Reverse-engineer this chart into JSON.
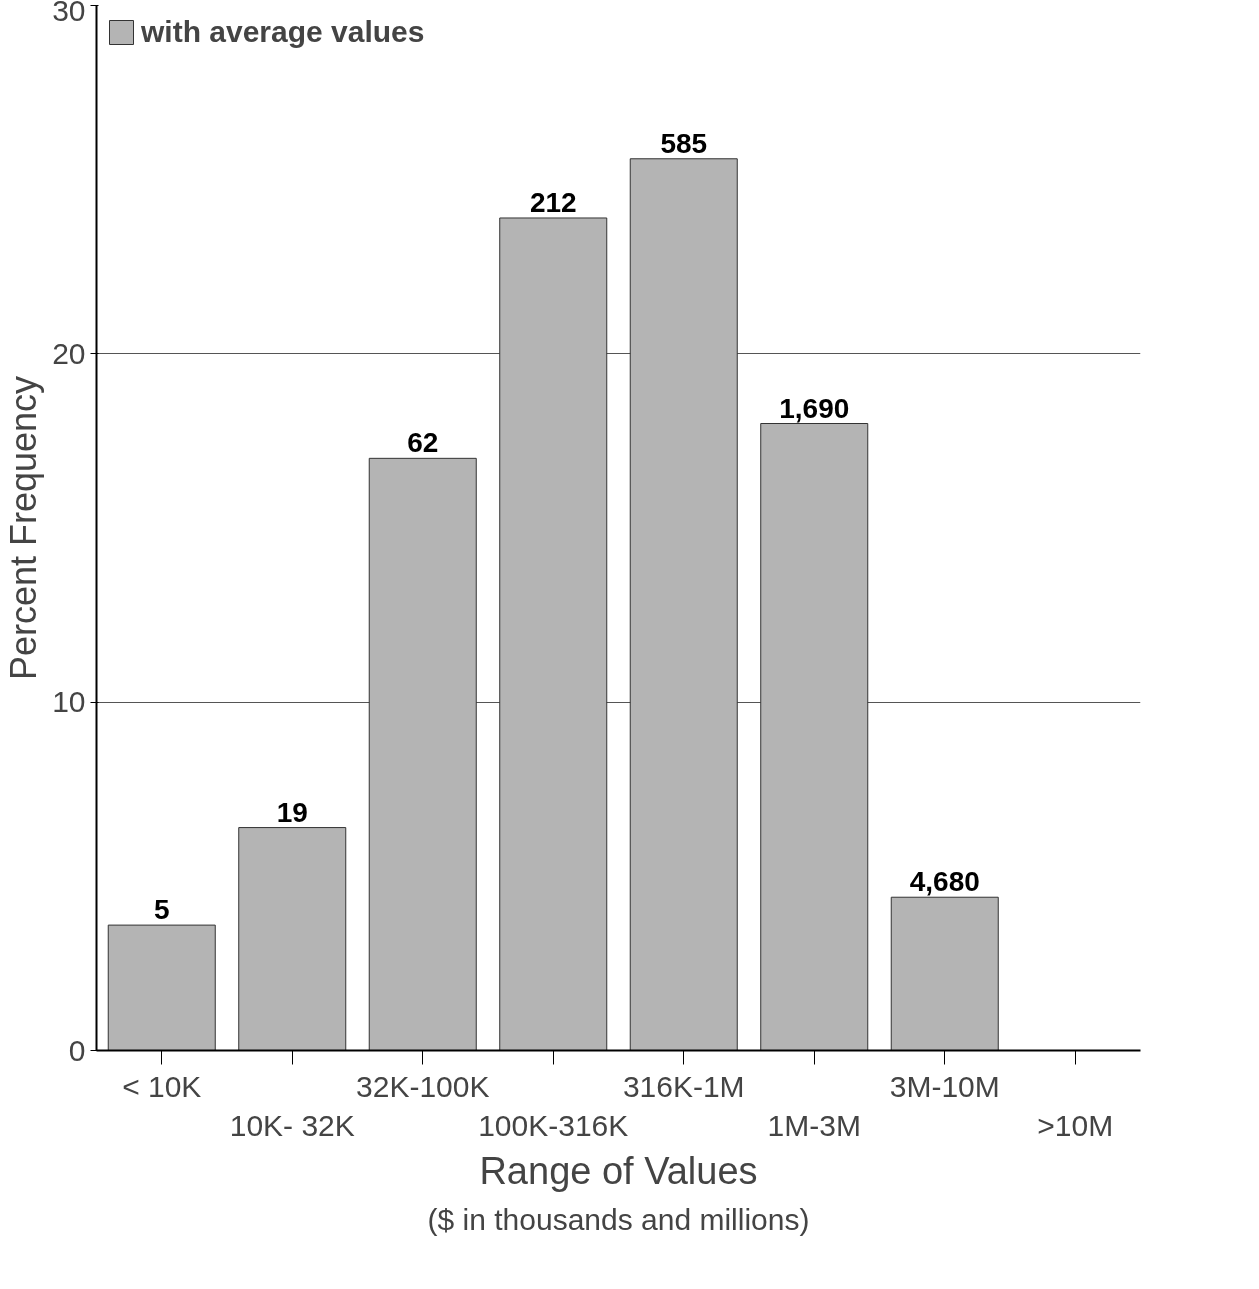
{
  "chart_data": {
    "type": "bar",
    "xlabel": "Range of Values",
    "subtitle": "($ in thousands and millions)",
    "ylabel": "Percent Frequency",
    "categories": [
      "< 10K",
      "10K- 32K",
      "32K-100K",
      "100K-316K",
      "316K-1M",
      "1M-3M",
      "3M-10M",
      ">10M"
    ],
    "series": [
      {
        "name": "with average values",
        "color": "#b4b4b4",
        "values": [
          3.6,
          6.4,
          17.0,
          23.9,
          25.6,
          18.0,
          4.4,
          null
        ]
      }
    ],
    "annotations": [
      {
        "text": "5",
        "x": "< 10K",
        "y": 3.6
      },
      {
        "text": "19",
        "x": "10K- 32K",
        "y": 6.4
      },
      {
        "text": "62",
        "x": "32K-100K",
        "y": 17.0
      },
      {
        "text": "212",
        "x": "100K-316K",
        "y": 23.9
      },
      {
        "text": "585",
        "x": "316K-1M",
        "y": 25.6
      },
      {
        "text": "1,690",
        "x": "1M-3M",
        "y": 18.0
      },
      {
        "text": "4,680",
        "x": "3M-10M",
        "y": 4.4
      }
    ],
    "ylim": [
      0,
      30
    ],
    "yticks": [
      0,
      10,
      20,
      30
    ],
    "grid": "y",
    "legend": "top left"
  }
}
